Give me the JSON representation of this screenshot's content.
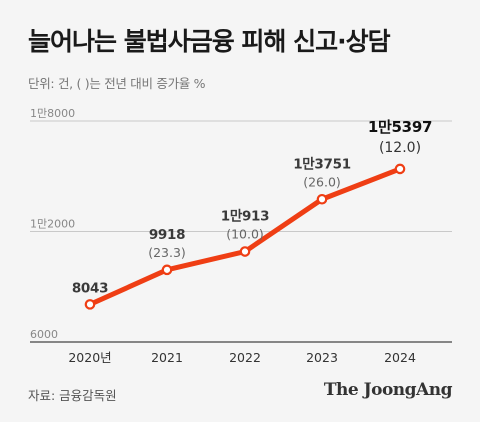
{
  "title": "늘어나는 불법사금융 피해 신고·상담",
  "unit_note": "단위: 건, ( )는 전년 대비 증가율 %",
  "source": "자료: 금융감독원",
  "brand": "The JoongAng",
  "colors": {
    "line": "#ef3e14",
    "marker_fill": "#ffffff",
    "background": "#f5f5f5"
  },
  "chart_data": {
    "type": "line",
    "title": "늘어나는 불법사금융 피해 신고·상담",
    "categories": [
      "2020년",
      "2021",
      "2022",
      "2023",
      "2024"
    ],
    "values": [
      8043,
      9918,
      10913,
      13751,
      15397
    ],
    "value_labels": [
      "8043",
      "9918",
      "1만913",
      "1만3751",
      "1만5397"
    ],
    "growth_labels": [
      "",
      "(23.3)",
      "(10.0)",
      "(26.0)",
      "(12.0)"
    ],
    "ylim": [
      6000,
      18000
    ],
    "yticks": [
      6000,
      12000,
      18000
    ],
    "ytick_labels": [
      "6000",
      "1만2000",
      "1만8000"
    ],
    "grid": true
  }
}
